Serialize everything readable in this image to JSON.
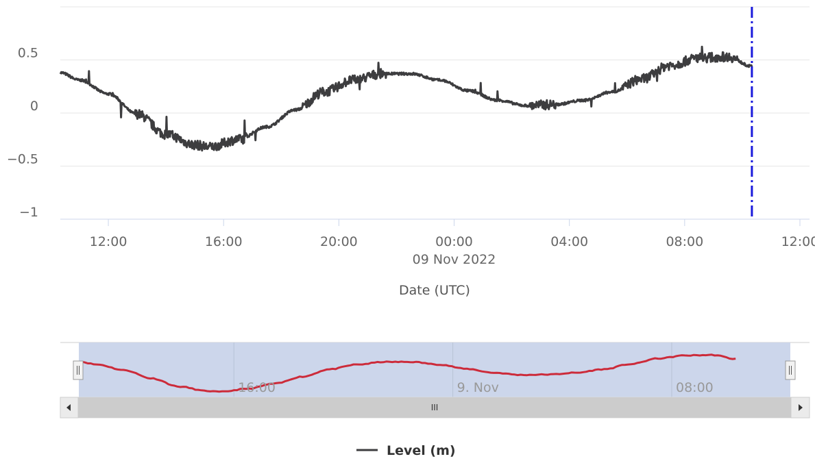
{
  "chart_data": {
    "type": "line",
    "xlabel": "Date (UTC)",
    "ylabel": "",
    "x_range": [
      "2022-11-08T10:20",
      "2022-11-09T12:20"
    ],
    "ylim": [
      -1,
      1
    ],
    "y_ticks": [
      {
        "value": 0.5,
        "label": "0.5"
      },
      {
        "value": 0,
        "label": "0"
      },
      {
        "value": -0.5,
        "label": "−0.5"
      },
      {
        "value": -1,
        "label": "−1"
      }
    ],
    "x_ticks": [
      {
        "time": "2022-11-08T12:00",
        "label": "12:00",
        "sublabel": ""
      },
      {
        "time": "2022-11-08T16:00",
        "label": "16:00",
        "sublabel": ""
      },
      {
        "time": "2022-11-08T20:00",
        "label": "20:00",
        "sublabel": ""
      },
      {
        "time": "2022-11-09T00:00",
        "label": "00:00",
        "sublabel": "09 Nov 2022"
      },
      {
        "time": "2022-11-09T04:00",
        "label": "04:00",
        "sublabel": ""
      },
      {
        "time": "2022-11-09T08:00",
        "label": "08:00",
        "sublabel": ""
      },
      {
        "time": "2022-11-09T12:00",
        "label": "12:00",
        "sublabel": ""
      }
    ],
    "grid": true,
    "legend_position": "bottom-center",
    "series": [
      {
        "name": "Level (m)",
        "color": "#3d3d3f",
        "nav_color": "#cc2b3a",
        "points": [
          {
            "x": "2022-11-08T10:20",
            "y": 0.38
          },
          {
            "x": "2022-11-08T11:00",
            "y": 0.31
          },
          {
            "x": "2022-11-08T12:00",
            "y": 0.18
          },
          {
            "x": "2022-11-08T13:00",
            "y": -0.01
          },
          {
            "x": "2022-11-08T14:00",
            "y": -0.2
          },
          {
            "x": "2022-11-08T15:00",
            "y": -0.3
          },
          {
            "x": "2022-11-08T15:30",
            "y": -0.32
          },
          {
            "x": "2022-11-08T16:30",
            "y": -0.25
          },
          {
            "x": "2022-11-08T17:30",
            "y": -0.13
          },
          {
            "x": "2022-11-08T18:30",
            "y": 0.03
          },
          {
            "x": "2022-11-08T19:30",
            "y": 0.2
          },
          {
            "x": "2022-11-08T20:30",
            "y": 0.31
          },
          {
            "x": "2022-11-08T21:30",
            "y": 0.37
          },
          {
            "x": "2022-11-08T22:30",
            "y": 0.37
          },
          {
            "x": "2022-11-08T23:30",
            "y": 0.31
          },
          {
            "x": "2022-11-09T00:30",
            "y": 0.21
          },
          {
            "x": "2022-11-09T01:30",
            "y": 0.12
          },
          {
            "x": "2022-11-09T02:30",
            "y": 0.07
          },
          {
            "x": "2022-11-09T03:30",
            "y": 0.08
          },
          {
            "x": "2022-11-09T04:30",
            "y": 0.12
          },
          {
            "x": "2022-11-09T05:30",
            "y": 0.2
          },
          {
            "x": "2022-11-09T06:30",
            "y": 0.32
          },
          {
            "x": "2022-11-09T07:30",
            "y": 0.45
          },
          {
            "x": "2022-11-09T08:30",
            "y": 0.52
          },
          {
            "x": "2022-11-09T09:30",
            "y": 0.53
          },
          {
            "x": "2022-11-09T10:20",
            "y": 0.44
          }
        ]
      }
    ],
    "plot_line": {
      "x": "2022-11-09T10:20",
      "color": "#1a1adb",
      "style": "dash-dot"
    }
  },
  "navigator": {
    "labels": [
      {
        "time": "2022-11-08T16:00",
        "label": "16:00"
      },
      {
        "time": "2022-11-09T00:00",
        "label": "9. Nov"
      },
      {
        "time": "2022-11-09T08:00",
        "label": "08:00"
      }
    ],
    "selection_fill": "#ccd6eb",
    "scrollbar_grip": "III"
  },
  "legend": {
    "label": "Level (m)"
  }
}
